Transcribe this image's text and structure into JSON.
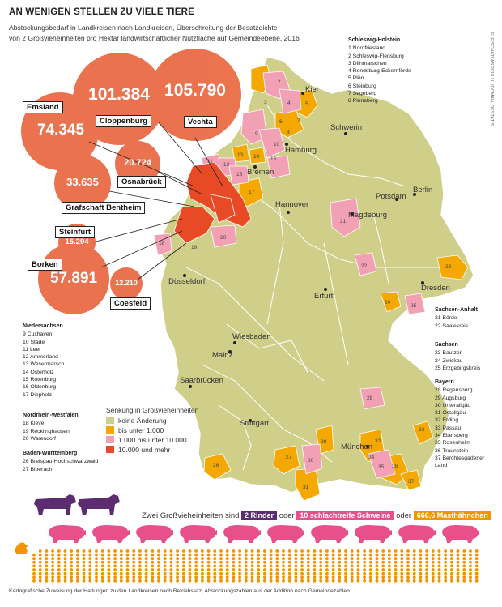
{
  "title": "AN WENIGEN STELLEN ZU VIELE TIERE",
  "subtitle_line1": "Abstockungsbedarf in Landkreisen nach Landkreisen, Überschreitung der Besatzdichte",
  "subtitle_line2": "von 2 Großvieheinheiten pro Hektar landwirtschaftlicher Nutzfläche auf Gemeindeebene, 2016",
  "credit": "FLEISCHATLAS 2018 / LUDOMAH, DESTATIS",
  "colors": {
    "none": "#cfcf8a",
    "under1000": "#f5a800",
    "1000to10000": "#f2a0b4",
    "over10000": "#e84a25",
    "bubble": "#ea6b45",
    "rinder": "#5b2c6f",
    "schweine": "#e8508c",
    "haehnchen": "#f29400"
  },
  "bubbles": [
    {
      "name": "Cloppenburg",
      "value": "101.384"
    },
    {
      "name": "Vechta",
      "value": "105.790"
    },
    {
      "name": "Emsland",
      "value": "74.345"
    },
    {
      "name": "Osnabrück",
      "value": "20.724"
    },
    {
      "name": "Grafschaft Bentheim",
      "value": "33.635"
    },
    {
      "name": "Steinfurt",
      "value": "15.294"
    },
    {
      "name": "Borken",
      "value": "57.891"
    },
    {
      "name": "Coesfeld",
      "value": "12.210"
    }
  ],
  "cities": [
    "Kiel",
    "Schwerin",
    "Hamburg",
    "Bremen",
    "Berlin",
    "Potsdam",
    "Hannover",
    "Magdeburg",
    "Düsseldorf",
    "Erfurt",
    "Dresden",
    "Wiesbaden",
    "Mainz",
    "Saarbrücken",
    "Stuttgart",
    "München"
  ],
  "sh": {
    "header": "Schleswig-Holstein",
    "items": [
      "1 Nordfriesland",
      "2 Schleswig-Flensburg",
      "3 Dithmarschen",
      "4 Rendsburg-Eckernförde",
      "5 Plön",
      "6 Steinburg",
      "7 Segeberg",
      "8 Pinneberg"
    ]
  },
  "nds": {
    "header": "Niedersachsen",
    "items": [
      "9 Cuxhaven",
      "10 Stade",
      "11 Leer",
      "12 Ammerland",
      "13 Wesermarsch",
      "14 Osterholz",
      "15 Rotenburg",
      "16 Oldenburg",
      "17 Diepholz"
    ]
  },
  "nrw": {
    "header": "Nordrhein-Westfalen",
    "items": [
      "18 Kleve",
      "19 Recklinghausen",
      "20 Warendorf"
    ]
  },
  "bw": {
    "header": "Baden-Württemberg",
    "items": [
      "26 Breisgau-Hochschwarzwald",
      "27 Biberach"
    ]
  },
  "sa": {
    "header": "Sachsen-Anhalt",
    "items": [
      "21 Börde",
      "22 Saalekreis"
    ]
  },
  "sx": {
    "header": "Sachsen",
    "items": [
      "23 Bautzen",
      "24 Zwickau",
      "25 Erzgebirgskreis"
    ]
  },
  "by": {
    "header": "Bayern",
    "items": [
      "28 Regensburg",
      "29 Augsburg",
      "30 Unterallgäu",
      "31 Ostallgäu",
      "32 Erding",
      "33 Passau",
      "34 Ebersberg",
      "35 Rosenheim",
      "36 Traunstein",
      "37 Berchtesgadener Land"
    ]
  },
  "senkung": {
    "header": "Senkung in Großvieheinheiten",
    "items": [
      "keine Änderung",
      "bis unter 1.000",
      "1.000 bis unter 10.000",
      "10.000 und mehr"
    ]
  },
  "equiv": {
    "prefix": "Zwei Großvieheinheiten sind",
    "rinder": "2 Rinder",
    "oder1": "oder",
    "schweine": "10 schlachtreife Schweine",
    "oder2": "oder",
    "haehnchen": "666,6 Masthähnchen"
  },
  "footer": "Kartografische Zuweisung der Haltungen zu den Landkreisen nach Betriebssitz, Abstockungszahlen aus der Addition nach Gemeindezahlen"
}
